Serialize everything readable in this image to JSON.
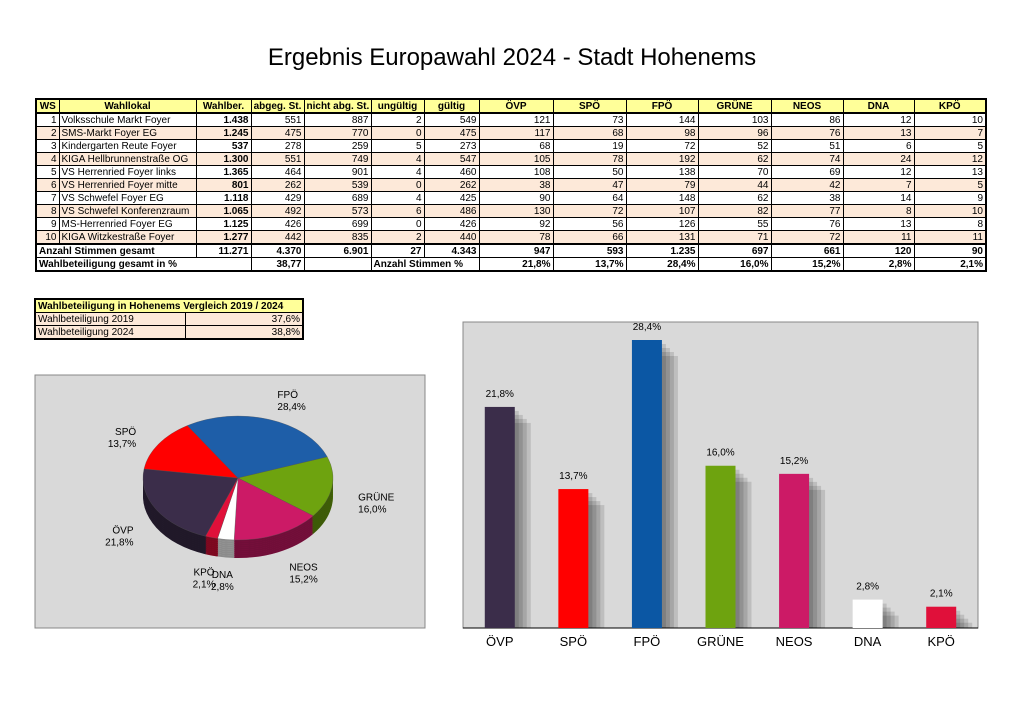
{
  "title": "Ergebnis Europawahl 2024 - Stadt Hohenems",
  "table": {
    "header": [
      "WS",
      "Wahllokal",
      "Wahlber.",
      "abgeg. St.",
      "nicht abg. St.",
      "ungültig",
      "gültig",
      "ÖVP",
      "SPÖ",
      "FPÖ",
      "GRÜNE",
      "NEOS",
      "DNA",
      "KPÖ"
    ],
    "rows": [
      [
        "1",
        "Volksschule Markt Foyer",
        "1.438",
        "551",
        "887",
        "2",
        "549",
        "121",
        "73",
        "144",
        "103",
        "86",
        "12",
        "10"
      ],
      [
        "2",
        "SMS-Markt Foyer EG",
        "1.245",
        "475",
        "770",
        "0",
        "475",
        "117",
        "68",
        "98",
        "96",
        "76",
        "13",
        "7"
      ],
      [
        "3",
        "Kindergarten Reute Foyer",
        "537",
        "278",
        "259",
        "5",
        "273",
        "68",
        "19",
        "72",
        "52",
        "51",
        "6",
        "5"
      ],
      [
        "4",
        "KIGA Hellbrunnenstraße OG",
        "1.300",
        "551",
        "749",
        "4",
        "547",
        "105",
        "78",
        "192",
        "62",
        "74",
        "24",
        "12"
      ],
      [
        "5",
        "VS Herrenried Foyer links",
        "1.365",
        "464",
        "901",
        "4",
        "460",
        "108",
        "50",
        "138",
        "70",
        "69",
        "12",
        "13"
      ],
      [
        "6",
        "VS Herrenried Foyer mitte",
        "801",
        "262",
        "539",
        "0",
        "262",
        "38",
        "47",
        "79",
        "44",
        "42",
        "7",
        "5"
      ],
      [
        "7",
        "VS Schwefel Foyer EG",
        "1.118",
        "429",
        "689",
        "4",
        "425",
        "90",
        "64",
        "148",
        "62",
        "38",
        "14",
        "9"
      ],
      [
        "8",
        "VS Schwefel Konferenzraum",
        "1.065",
        "492",
        "573",
        "6",
        "486",
        "130",
        "72",
        "107",
        "82",
        "77",
        "8",
        "10"
      ],
      [
        "9",
        "MS-Herrenried Foyer EG",
        "1.125",
        "426",
        "699",
        "0",
        "426",
        "92",
        "56",
        "126",
        "55",
        "76",
        "13",
        "8"
      ],
      [
        "10",
        "KIGA Witzkestraße Foyer",
        "1.277",
        "442",
        "835",
        "2",
        "440",
        "78",
        "66",
        "131",
        "71",
        "72",
        "11",
        "11"
      ]
    ],
    "total": {
      "label": "Anzahl Stimmen gesamt",
      "values": [
        "11.271",
        "4.370",
        "6.901",
        "27",
        "4.343",
        "947",
        "593",
        "1.235",
        "697",
        "661",
        "120",
        "90"
      ]
    },
    "turnout": {
      "label": "Wahlbeteiligung gesamt in %",
      "value": "38,77"
    },
    "percent": {
      "label": "Anzahl Stimmen %"
    }
  },
  "comparison": {
    "title": "Wahlbeteiligung in Hohenems Vergleich 2019 / 2024",
    "rows": [
      [
        "Wahlbeteiligung 2019",
        "37,6%"
      ],
      [
        "Wahlbeteiligung 2024",
        "38,8%"
      ]
    ]
  },
  "chart_data": [
    {
      "type": "pie",
      "categories": [
        "ÖVP",
        "SPÖ",
        "FPÖ",
        "GRÜNE",
        "NEOS",
        "DNA",
        "KPÖ"
      ],
      "values": [
        21.8,
        13.7,
        28.4,
        16.0,
        15.2,
        2.8,
        2.1
      ],
      "value_labels": [
        "21,8%",
        "13,7%",
        "28,4%",
        "16,0%",
        "15,2%",
        "2,8%",
        "2,1%"
      ],
      "colors": [
        "#3b2d4a",
        "#ff0000",
        "#1e5ea8",
        "#6ea30f",
        "#cc1a66",
        "#ffffff",
        "#e0103a"
      ]
    },
    {
      "type": "bar",
      "categories": [
        "ÖVP",
        "SPÖ",
        "FPÖ",
        "GRÜNE",
        "NEOS",
        "DNA",
        "KPÖ"
      ],
      "values": [
        21.8,
        13.7,
        28.4,
        16.0,
        15.2,
        2.8,
        2.1
      ],
      "value_labels": [
        "21,8%",
        "13,7%",
        "28,4%",
        "16,0%",
        "15,2%",
        "2,8%",
        "2,1%"
      ],
      "colors": [
        "#3b2d4a",
        "#ff0000",
        "#0b57a4",
        "#6ea30f",
        "#cc1a66",
        "#ffffff",
        "#e0103a"
      ]
    }
  ]
}
